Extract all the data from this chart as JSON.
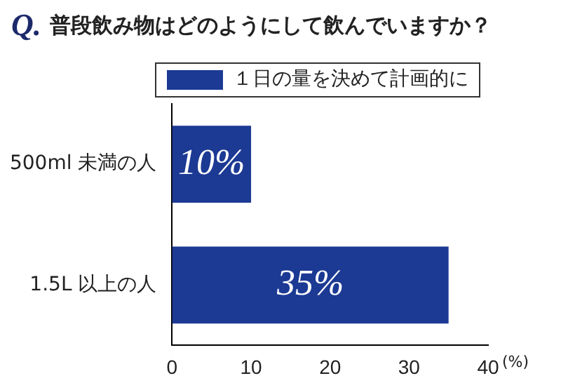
{
  "chart_data": {
    "type": "bar",
    "orientation": "horizontal",
    "title": "普段飲み物はどのようにして飲んでいますか？",
    "annotations": [
      "Q."
    ],
    "categories": [
      "500ml 未満の人",
      "1.5L 以上の人"
    ],
    "series": [
      {
        "name": "１日の量を決めて計画的に",
        "color": "#1c3a94",
        "values": [
          10,
          35
        ],
        "value_labels": [
          "10%",
          "35%"
        ]
      }
    ],
    "xlim": [
      0,
      40
    ],
    "xticks": [
      0,
      10,
      20,
      30,
      40
    ],
    "xlabel": "(%)",
    "legend": "top",
    "grid": false
  }
}
